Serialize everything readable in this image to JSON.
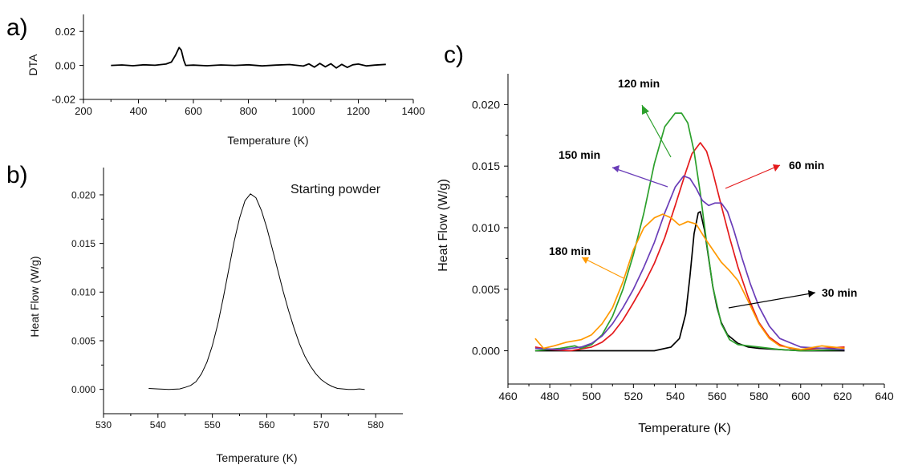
{
  "chart_data": [
    {
      "panel_label": "a)",
      "type": "line",
      "xlabel": "Temperature (K)",
      "ylabel": "DTA",
      "xlim": [
        200,
        1400
      ],
      "ylim": [
        -0.02,
        0.03
      ],
      "xticks": [
        200,
        400,
        600,
        800,
        1000,
        1200,
        1400
      ],
      "yticks": [
        -0.02,
        0.0,
        0.02
      ],
      "xtick_labels": [
        "200",
        "400",
        "600",
        "800",
        "1000",
        "1200",
        "1400"
      ],
      "ytick_labels": [
        "-0.02",
        "0.00",
        "0.02"
      ],
      "grid": false,
      "series": [
        {
          "color": "#000000",
          "x": [
            300,
            340,
            380,
            420,
            460,
            500,
            520,
            535,
            548,
            556,
            565,
            572,
            600,
            650,
            700,
            750,
            800,
            850,
            900,
            950,
            1000,
            1020,
            1040,
            1060,
            1080,
            1100,
            1120,
            1140,
            1160,
            1180,
            1200,
            1230,
            1260,
            1300
          ],
          "y": [
            0.0,
            0.0003,
            -0.0002,
            0.0004,
            0.0001,
            0.0008,
            0.002,
            0.006,
            0.0105,
            0.009,
            0.003,
            0.0,
            0.0002,
            -0.0002,
            0.0003,
            0.0,
            0.0004,
            -0.0003,
            0.0002,
            0.0005,
            -0.0004,
            0.0009,
            -0.001,
            0.0012,
            -0.0008,
            0.001,
            -0.0015,
            0.0006,
            -0.0012,
            0.0004,
            0.0008,
            -0.0003,
            0.0002,
            0.0006
          ]
        }
      ]
    },
    {
      "panel_label": "b)",
      "type": "line",
      "xlabel": "Temperature (K)",
      "ylabel": "Heat Flow (W/g)",
      "xlim": [
        530,
        585
      ],
      "ylim": [
        -0.0025,
        0.0228
      ],
      "xticks": [
        530,
        540,
        550,
        560,
        570,
        580
      ],
      "yticks": [
        0.0,
        0.005,
        0.01,
        0.015,
        0.02
      ],
      "xtick_labels": [
        "530",
        "540",
        "550",
        "560",
        "570",
        "580"
      ],
      "ytick_labels": [
        "0.000",
        "0.005",
        "0.010",
        "0.015",
        "0.020"
      ],
      "annotations": [
        "Starting powder"
      ],
      "grid": false,
      "series": [
        {
          "color": "#000000",
          "x": [
            538.3,
            540,
            542,
            544,
            545,
            546,
            547,
            548,
            549,
            550,
            551,
            552,
            553,
            554,
            555,
            556,
            557,
            558,
            559,
            560,
            561,
            562,
            563,
            564,
            565,
            566,
            567,
            568,
            569,
            570,
            571,
            572,
            573,
            574,
            575,
            576,
            577,
            578
          ],
          "y": [
            0.0001,
            5e-05,
            0.0,
            5e-05,
            0.0002,
            0.0004,
            0.0008,
            0.0016,
            0.0028,
            0.0045,
            0.0067,
            0.0094,
            0.0123,
            0.0152,
            0.0176,
            0.0194,
            0.0201,
            0.0197,
            0.0184,
            0.0166,
            0.0145,
            0.0123,
            0.0101,
            0.0081,
            0.0063,
            0.0047,
            0.0034,
            0.0024,
            0.0016,
            0.001,
            0.0006,
            0.0003,
            0.0001,
            5e-05,
            0.0,
            0.0,
            5e-05,
            0.0
          ]
        }
      ]
    },
    {
      "panel_label": "c)",
      "type": "line",
      "xlabel": "Temperature (K)",
      "ylabel": "Heat Flow (W/g)",
      "xlim": [
        460,
        640
      ],
      "ylim": [
        -0.0027,
        0.0225
      ],
      "xticks": [
        460,
        480,
        500,
        520,
        540,
        560,
        580,
        600,
        620,
        640
      ],
      "yticks": [
        0.0,
        0.005,
        0.01,
        0.015,
        0.02
      ],
      "xtick_labels": [
        "460",
        "480",
        "500",
        "520",
        "540",
        "560",
        "580",
        "600",
        "620",
        "640"
      ],
      "ytick_labels": [
        "0.000",
        "0.005",
        "0.010",
        "0.015",
        "0.020"
      ],
      "grid": false,
      "annotations": [
        {
          "text": "120 min",
          "color": "#2ca02c"
        },
        {
          "text": "150 min",
          "color": "#6a3db8"
        },
        {
          "text": "60 min",
          "color": "#e41a1c"
        },
        {
          "text": "180 min",
          "color": "#ff9900"
        },
        {
          "text": "30 min",
          "color": "#000000"
        }
      ],
      "series": [
        {
          "color": "#000000",
          "x": [
            473,
            490,
            510,
            530,
            538,
            542,
            545,
            547,
            549,
            551,
            552,
            554,
            556,
            558,
            560,
            562,
            565,
            570,
            575,
            580,
            590,
            600,
            621
          ],
          "y": [
            0.0,
            0.0,
            0.0,
            0.0,
            0.0003,
            0.001,
            0.003,
            0.006,
            0.0095,
            0.0112,
            0.0113,
            0.0098,
            0.0075,
            0.0052,
            0.0035,
            0.0023,
            0.0013,
            0.0006,
            0.0003,
            0.0002,
            0.0001,
            0.0,
            0.0
          ]
        },
        {
          "color": "#e41a1c",
          "x": [
            473,
            480,
            490,
            500,
            505,
            510,
            515,
            520,
            525,
            530,
            535,
            540,
            545,
            548,
            552,
            555,
            558,
            562,
            566,
            570,
            575,
            580,
            585,
            590,
            595,
            600,
            610,
            621
          ],
          "y": [
            0.0003,
            0.0001,
            0.0,
            0.0003,
            0.0007,
            0.0014,
            0.0025,
            0.0039,
            0.0054,
            0.0071,
            0.0092,
            0.0118,
            0.0145,
            0.016,
            0.0169,
            0.0162,
            0.0145,
            0.0118,
            0.0092,
            0.0068,
            0.0043,
            0.0023,
            0.0011,
            0.0005,
            0.0002,
            0.0001,
            0.0002,
            0.0003
          ]
        },
        {
          "color": "#2ca02c",
          "x": [
            473,
            485,
            492,
            495,
            500,
            505,
            510,
            515,
            520,
            525,
            530,
            535,
            540,
            543,
            546,
            549,
            552,
            555,
            558,
            562,
            566,
            570,
            575,
            580,
            590,
            600,
            621
          ],
          "y": [
            0.0,
            0.0002,
            0.0004,
            0.0002,
            0.0005,
            0.0013,
            0.0028,
            0.005,
            0.0078,
            0.0112,
            0.0152,
            0.0182,
            0.0193,
            0.0193,
            0.0185,
            0.0162,
            0.0128,
            0.0088,
            0.0052,
            0.0022,
            0.0009,
            0.0005,
            0.0004,
            0.0003,
            0.0001,
            0.0,
            0.0001
          ]
        },
        {
          "color": "#6a3db8",
          "x": [
            473,
            485,
            495,
            500,
            505,
            510,
            515,
            520,
            525,
            530,
            535,
            540,
            544,
            547,
            550,
            553,
            556,
            559,
            562,
            565,
            568,
            572,
            576,
            580,
            585,
            590,
            600,
            621
          ],
          "y": [
            0.0002,
            0.0001,
            0.0003,
            0.0006,
            0.0012,
            0.0022,
            0.0035,
            0.005,
            0.0068,
            0.0088,
            0.0112,
            0.0133,
            0.0142,
            0.014,
            0.0132,
            0.0122,
            0.0118,
            0.012,
            0.012,
            0.0113,
            0.0098,
            0.0075,
            0.0054,
            0.0036,
            0.002,
            0.001,
            0.0003,
            0.0001
          ]
        },
        {
          "color": "#ff9900",
          "x": [
            473,
            477,
            482,
            488,
            495,
            500,
            505,
            510,
            515,
            520,
            525,
            530,
            534,
            538,
            542,
            546,
            550,
            554,
            558,
            562,
            566,
            570,
            575,
            580,
            585,
            590,
            600,
            610,
            621
          ],
          "y": [
            0.001,
            0.0002,
            0.0004,
            0.0007,
            0.0009,
            0.0013,
            0.0022,
            0.0035,
            0.0056,
            0.0082,
            0.01,
            0.0108,
            0.0111,
            0.0108,
            0.0102,
            0.0105,
            0.0103,
            0.0092,
            0.0082,
            0.0072,
            0.0065,
            0.0057,
            0.004,
            0.0022,
            0.001,
            0.0004,
            0.0001,
            0.0004,
            0.0002
          ]
        }
      ]
    }
  ]
}
